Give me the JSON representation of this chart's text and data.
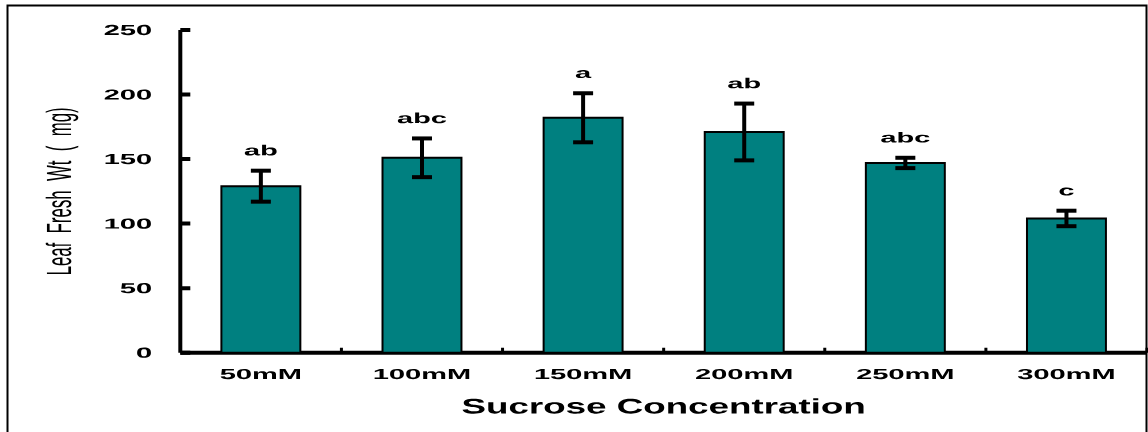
{
  "chart_data": {
    "type": "bar",
    "xlabel": "Sucrose Concentration",
    "ylabel": "Leaf Fresh Wt ( mg)",
    "categories": [
      "50mM",
      "100mM",
      "150mM",
      "200mM",
      "250mM",
      "300mM"
    ],
    "values": [
      129,
      151,
      182,
      171,
      147,
      104
    ],
    "errors": [
      12,
      15,
      19,
      22,
      4,
      6
    ],
    "color": "#008080",
    "ylim": [
      0,
      250
    ],
    "yticks": [
      0,
      50,
      100,
      150,
      200,
      250
    ],
    "annotations": [
      "ab",
      "abc",
      "a",
      "ab",
      "abc",
      "c"
    ]
  }
}
